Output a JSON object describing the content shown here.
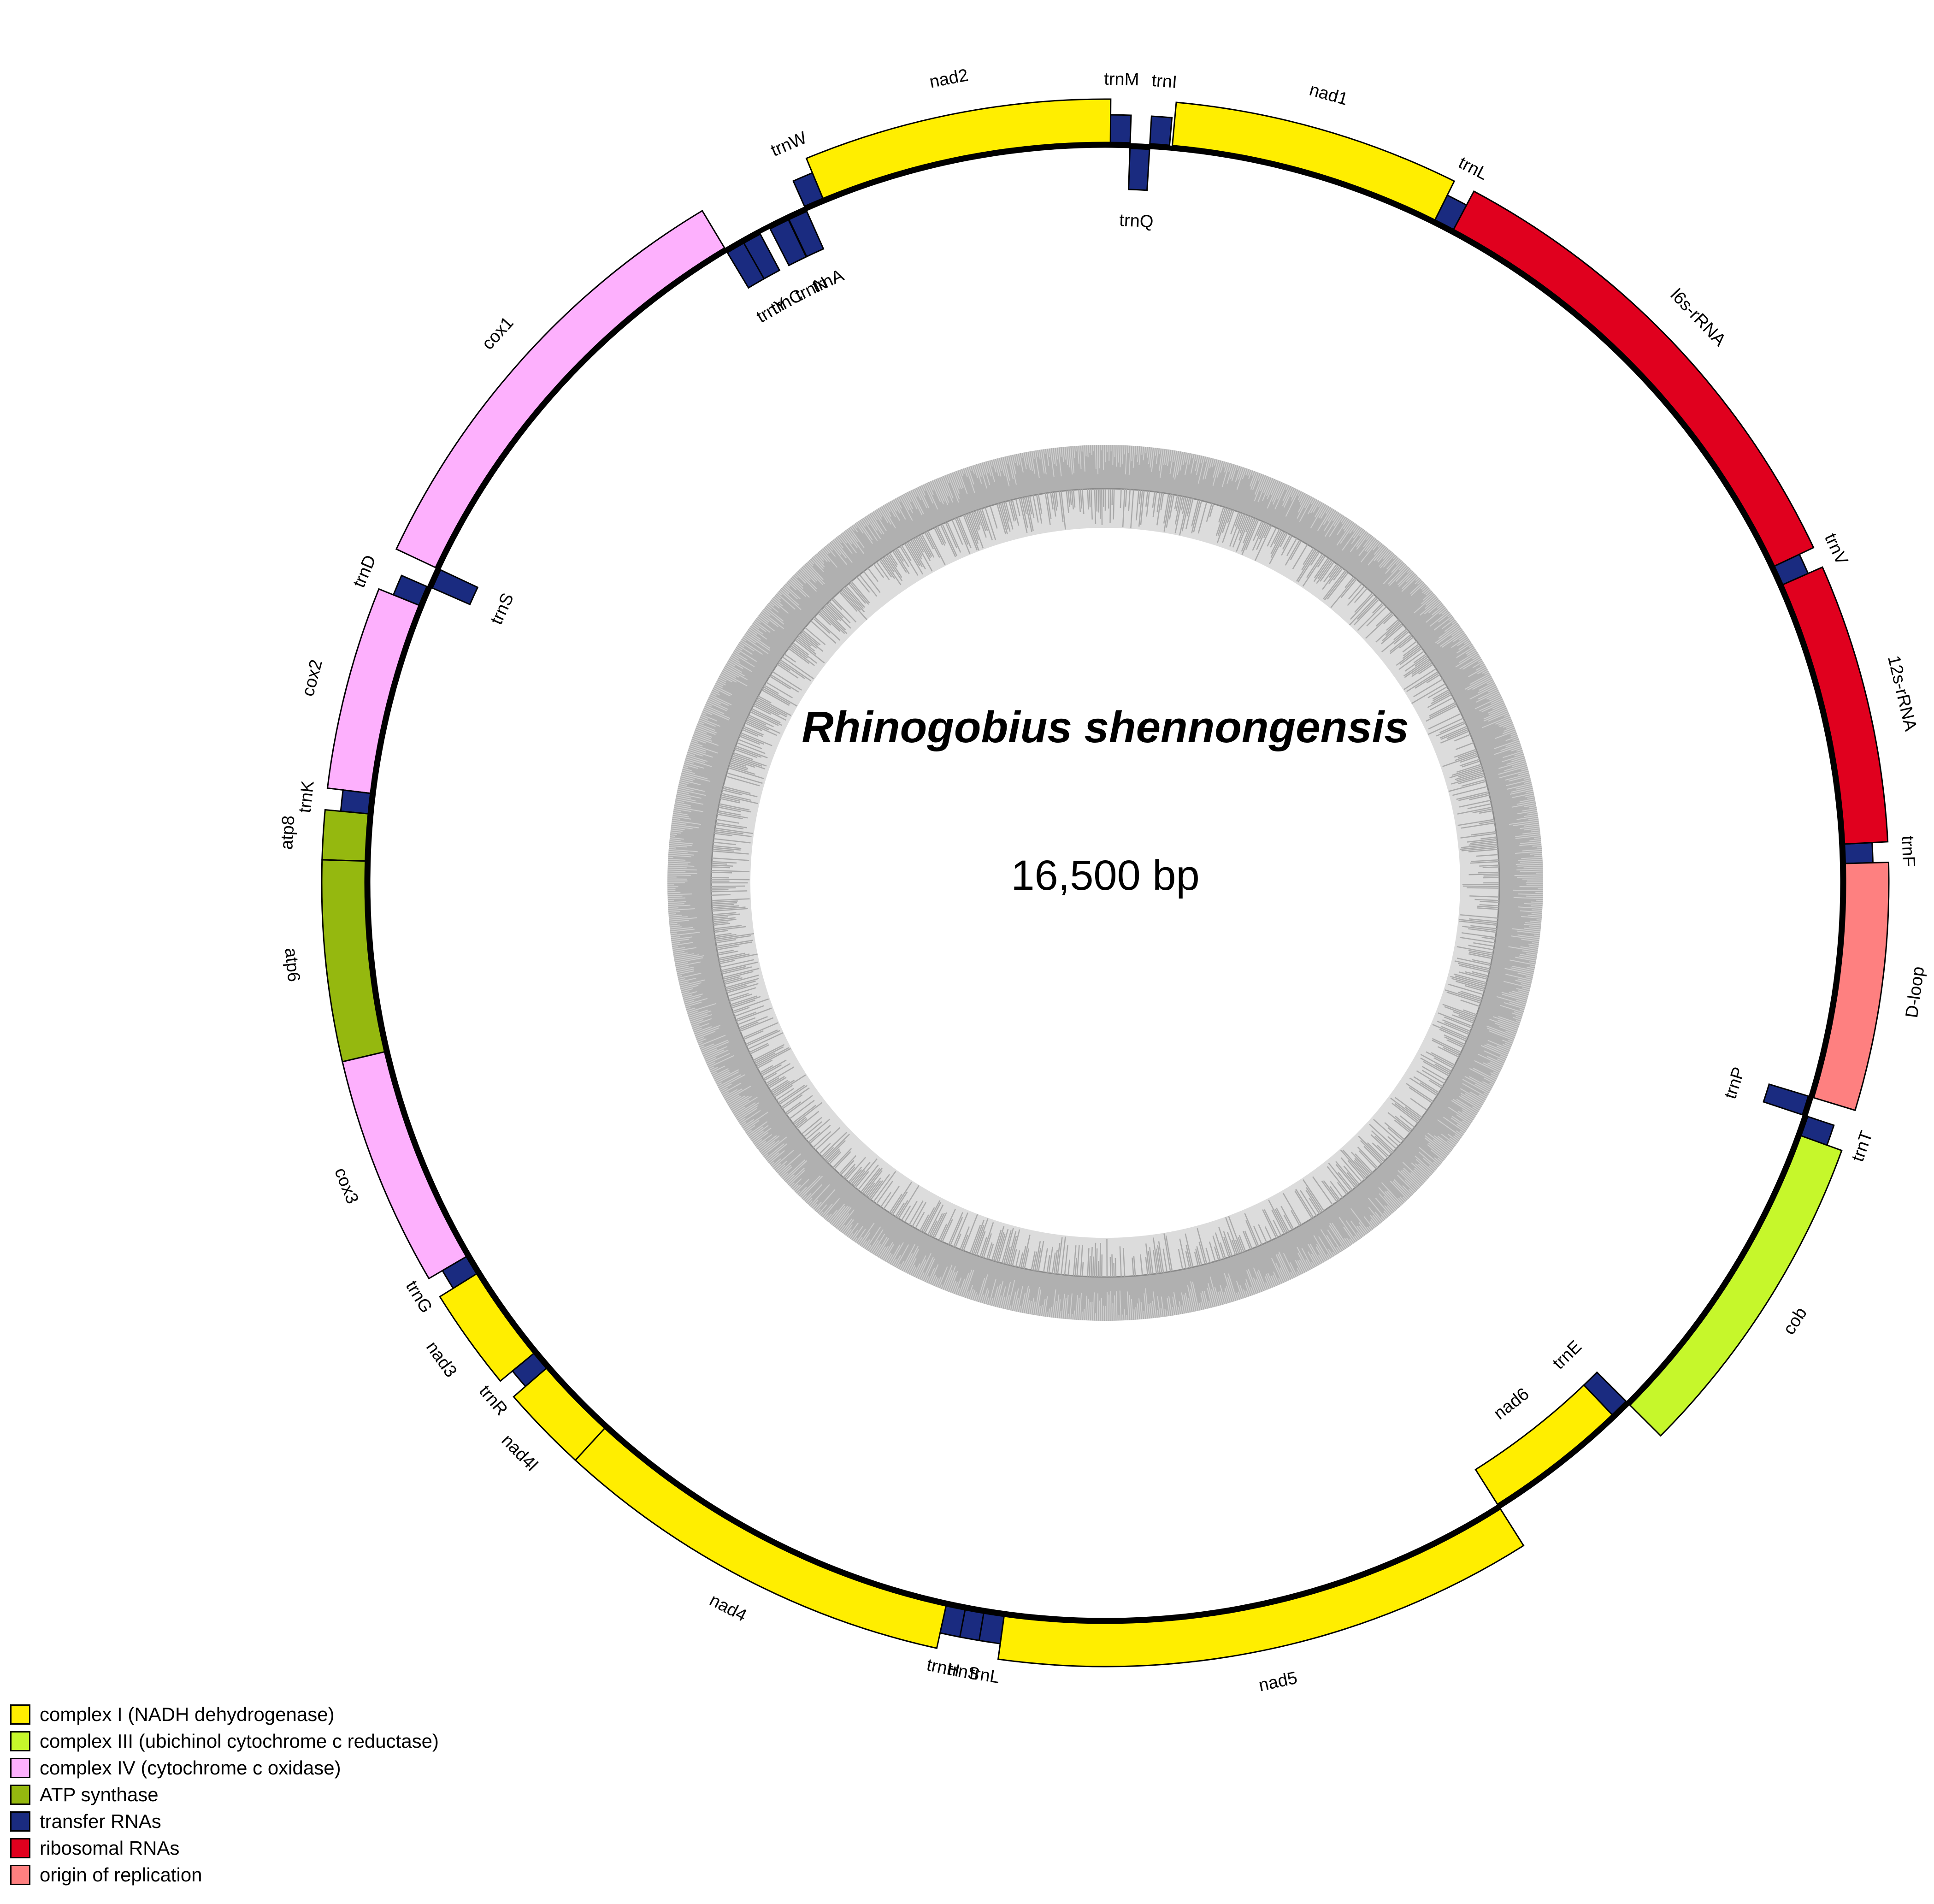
{
  "title": "Rhinogobius shennongensis",
  "genome_size": "16,500 bp",
  "colors": {
    "complexI": "#ffee00",
    "complexIII": "#c6f72b",
    "complexIV": "#fdb0fd",
    "atp": "#95b80f",
    "trna": "#1a2b80",
    "rrna": "#e0001e",
    "origin": "#fe8080",
    "gc_outer": "#b0b0b0",
    "gc_inner": "#dcdcdc"
  },
  "legend": [
    {
      "label": "complex I (NADH dehydrogenase)",
      "color": "#ffee00"
    },
    {
      "label": "complex III (ubichinol cytochrome c reductase)",
      "color": "#c6f72b"
    },
    {
      "label": "complex IV (cytochrome c oxidase)",
      "color": "#fdb0fd"
    },
    {
      "label": "ATP synthase",
      "color": "#95b80f"
    },
    {
      "label": "transfer RNAs",
      "color": "#1a2b80"
    },
    {
      "label": "ribosomal RNAs",
      "color": "#e0001e"
    },
    {
      "label": "origin of replication",
      "color": "#fe8080"
    }
  ],
  "genes": [
    {
      "name": "trnF",
      "start": 0,
      "end": 69,
      "strand": "out",
      "type": "trna"
    },
    {
      "name": "12s-rRNA",
      "start": 69,
      "end": 1020,
      "strand": "out",
      "type": "rrna"
    },
    {
      "name": "trnV",
      "start": 1020,
      "end": 1092,
      "strand": "out",
      "type": "trna"
    },
    {
      "name": "l6s-rRNA",
      "start": 1092,
      "end": 2770,
      "strand": "out",
      "type": "rrna"
    },
    {
      "name": "trnL",
      "start": 2770,
      "end": 2844,
      "strand": "out",
      "type": "trna"
    },
    {
      "name": "nad1",
      "start": 2844,
      "end": 3818,
      "strand": "out",
      "type": "complexI"
    },
    {
      "name": "trnI",
      "start": 3828,
      "end": 3898,
      "strand": "out",
      "type": "trna"
    },
    {
      "name": "trnQ",
      "start": 3898,
      "end": 3968,
      "strand": "in",
      "type": "trna"
    },
    {
      "name": "trnM",
      "start": 3968,
      "end": 4038,
      "strand": "out",
      "type": "trna"
    },
    {
      "name": "nad2",
      "start": 4038,
      "end": 5084,
      "strand": "out",
      "type": "complexI"
    },
    {
      "name": "trnW",
      "start": 5084,
      "end": 5155,
      "strand": "out",
      "type": "trna"
    },
    {
      "name": "trnA",
      "start": 5155,
      "end": 5225,
      "strand": "in",
      "type": "trna"
    },
    {
      "name": "trnN",
      "start": 5227,
      "end": 5300,
      "strand": "in",
      "type": "trna"
    },
    {
      "name": "trnC",
      "start": 5340,
      "end": 5407,
      "strand": "in",
      "type": "trna"
    },
    {
      "name": "trnY",
      "start": 5407,
      "end": 5475,
      "strand": "in",
      "type": "trna"
    },
    {
      "name": "cox1",
      "start": 5475,
      "end": 7026,
      "strand": "out",
      "type": "complexIV"
    },
    {
      "name": "trnS",
      "start": 7026,
      "end": 7097,
      "strand": "in",
      "type": "trna"
    },
    {
      "name": "trnD",
      "start": 7100,
      "end": 7172,
      "strand": "out",
      "type": "trna"
    },
    {
      "name": "cox2",
      "start": 7172,
      "end": 7863,
      "strand": "out",
      "type": "complexIV"
    },
    {
      "name": "trnK",
      "start": 7863,
      "end": 7936,
      "strand": "out",
      "type": "trna"
    },
    {
      "name": "atp8",
      "start": 7936,
      "end": 8104,
      "strand": "out",
      "type": "atp"
    },
    {
      "name": "atp6",
      "start": 8104,
      "end": 8786,
      "strand": "out",
      "type": "atp"
    },
    {
      "name": "cox3",
      "start": 8786,
      "end": 9571,
      "strand": "out",
      "type": "complexIV"
    },
    {
      "name": "trnG",
      "start": 9571,
      "end": 9642,
      "strand": "out",
      "type": "trna"
    },
    {
      "name": "nad3",
      "start": 9642,
      "end": 9990,
      "strand": "out",
      "type": "complexI"
    },
    {
      "name": "trnR",
      "start": 9990,
      "end": 10059,
      "strand": "out",
      "type": "trna"
    },
    {
      "name": "nad4l",
      "start": 10059,
      "end": 10356,
      "strand": "out",
      "type": "complexI"
    },
    {
      "name": "nad4",
      "start": 10356,
      "end": 11737,
      "strand": "out",
      "type": "complexI"
    },
    {
      "name": "trnH",
      "start": 11737,
      "end": 11806,
      "strand": "out",
      "type": "trna"
    },
    {
      "name": "trnS",
      "start": 11806,
      "end": 11873,
      "strand": "out",
      "type": "trna"
    },
    {
      "name": "trnL",
      "start": 11873,
      "end": 11946,
      "strand": "out",
      "type": "trna"
    },
    {
      "name": "nad5",
      "start": 11946,
      "end": 13785,
      "strand": "out",
      "type": "complexI"
    },
    {
      "name": "nad6",
      "start": 13785,
      "end": 14306,
      "strand": "in",
      "type": "complexI"
    },
    {
      "name": "trnE",
      "start": 14306,
      "end": 14375,
      "strand": "in",
      "type": "trna"
    },
    {
      "name": "cob",
      "start": 14375,
      "end": 15516,
      "strand": "out",
      "type": "complexIII"
    },
    {
      "name": "trnT",
      "start": 15516,
      "end": 15588,
      "strand": "out",
      "type": "trna"
    },
    {
      "name": "trnP",
      "start": 15588,
      "end": 15658,
      "strand": "in",
      "type": "trna"
    },
    {
      "name": "D-loop",
      "start": 15658,
      "end": 16500,
      "strand": "out",
      "type": "origin"
    }
  ]
}
